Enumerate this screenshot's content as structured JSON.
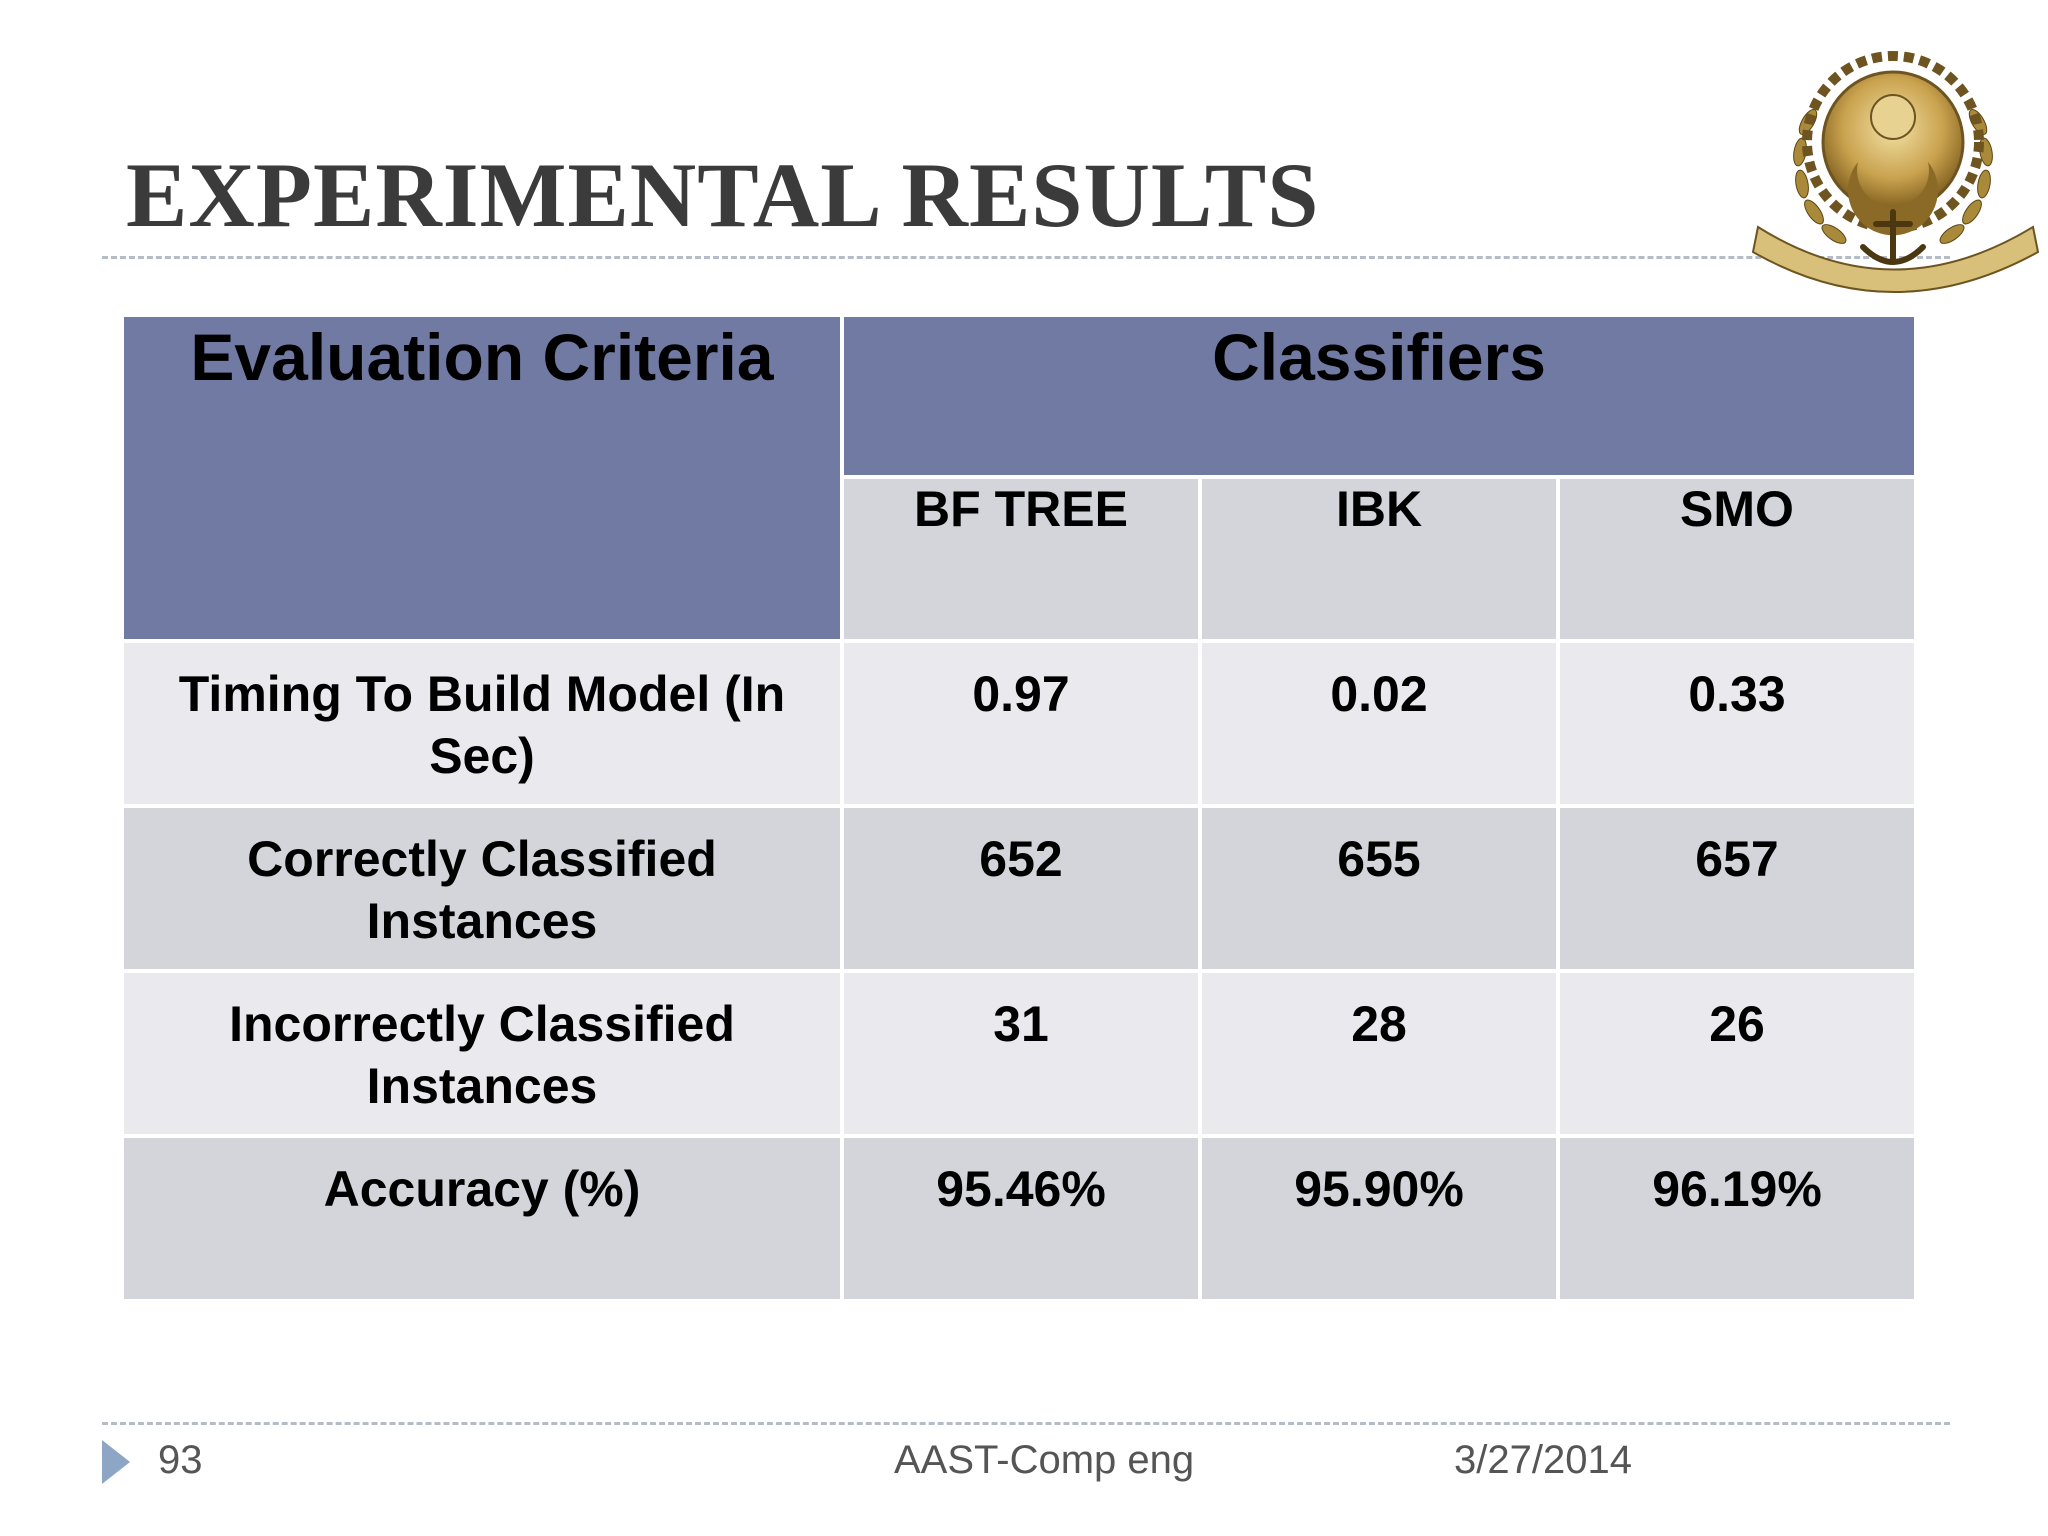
{
  "slide": {
    "title": "EXPERIMENTAL RESULTS"
  },
  "table": {
    "criteria_header": "Evaluation Criteria",
    "classifiers_header": "Classifiers",
    "classifiers": [
      "BF TREE",
      "IBK",
      "SMO"
    ],
    "rows": [
      {
        "label": "Timing To Build Model (In Sec)",
        "values": [
          "0.97",
          "0.02",
          "0.33"
        ]
      },
      {
        "label": "Correctly Classified Instances",
        "values": [
          "652",
          "655",
          "657"
        ]
      },
      {
        "label": "Incorrectly Classified Instances",
        "values": [
          "31",
          "28",
          "26"
        ]
      },
      {
        "label": "Accuracy (%)",
        "values": [
          "95.46%",
          "95.90%",
          "96.19%"
        ]
      }
    ]
  },
  "footer": {
    "page_number": "93",
    "center_text": "AAST-Comp eng",
    "date": "3/27/2014"
  },
  "colors": {
    "header_bg": "#717aa3",
    "row_light": "#e9e9ee",
    "row_dark": "#d4d5db",
    "footer_arrow": "#8ea6c6"
  },
  "icons": {
    "logo": "aast-emblem-icon",
    "footer_marker": "triangle-right-icon"
  }
}
